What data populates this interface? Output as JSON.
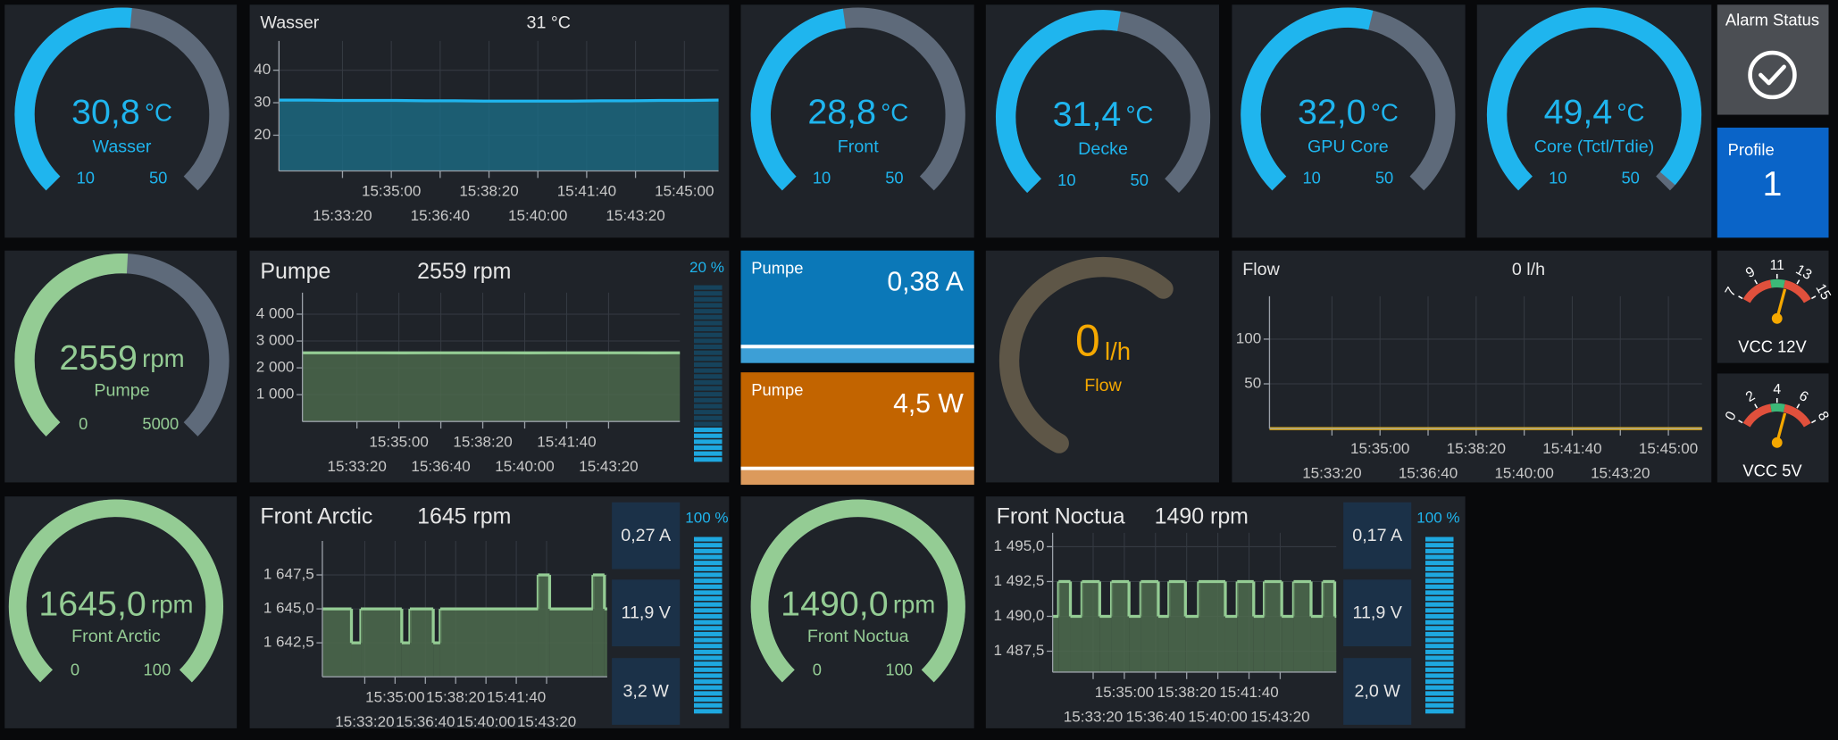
{
  "gauges": [
    {
      "label": "Wasser",
      "value": 30.8,
      "value_label": "30,8",
      "unit": "°C",
      "min": 10,
      "max": 50,
      "color": "#1fb5ee"
    },
    {
      "label": "Front",
      "value": 28.8,
      "value_label": "28,8",
      "unit": "°C",
      "min": 10,
      "max": 50,
      "color": "#1fb5ee"
    },
    {
      "label": "Decke",
      "value": 31.4,
      "value_label": "31,4",
      "unit": "°C",
      "min": 10,
      "max": 50,
      "color": "#1fb5ee"
    },
    {
      "label": "GPU Core",
      "value": 32.0,
      "value_label": "32,0",
      "unit": "°C",
      "min": 10,
      "max": 50,
      "color": "#1fb5ee"
    },
    {
      "label": "Core (Tctl/Tdie)",
      "value": 49.4,
      "value_label": "49,4",
      "unit": "°C",
      "min": 10,
      "max": 50,
      "color": "#1fb5ee"
    },
    {
      "label": "Pumpe",
      "value": 2559,
      "unit": "rpm",
      "min": 0,
      "max": 5000,
      "color": "#94cc94"
    },
    {
      "label": "Front Arctic",
      "value": 1645.0,
      "value_label": "1645,0",
      "unit": "rpm",
      "min": 0,
      "max": 100,
      "color": "#94cc94"
    },
    {
      "label": "Front Noctua",
      "value": 1490.0,
      "value_label": "1490,0",
      "unit": "rpm",
      "min": 0,
      "max": 100,
      "color": "#94cc94"
    }
  ],
  "flow_gauge": {
    "label": "Flow",
    "value": 0,
    "unit": "l/h",
    "color": "#f5a800"
  },
  "charts": [
    {
      "title": "Wasser",
      "current": "31 °C",
      "color": "#1fb5ee",
      "area": "#1b6c84",
      "xlim": [
        "15:31:10",
        "15:46:10"
      ],
      "xticks": [
        "15:33:20",
        "15:35:00",
        "15:36:40",
        "15:38:20",
        "15:40:00",
        "15:41:40",
        "15:43:20",
        "15:45:00"
      ],
      "ylim": [
        9,
        49
      ],
      "yticks": [
        20,
        30,
        40
      ],
      "x": [
        "15:31:10",
        "15:32:10",
        "15:33:10",
        "15:34:10",
        "15:35:10",
        "15:36:10",
        "15:37:10",
        "15:38:10",
        "15:39:10",
        "15:40:10",
        "15:41:10",
        "15:42:10",
        "15:43:10",
        "15:44:10",
        "15:45:10",
        "15:46:10"
      ],
      "values": [
        30.8,
        30.8,
        30.7,
        30.7,
        30.7,
        30.6,
        30.6,
        30.5,
        30.5,
        30.5,
        30.5,
        30.6,
        30.6,
        30.7,
        30.7,
        30.8
      ]
    },
    {
      "title": "Pumpe",
      "current": "2559 rpm",
      "color": "#94cc94",
      "area": "#4d6b4d",
      "xlim": [
        "15:31:10",
        "15:46:10"
      ],
      "xticks": [
        "15:33:20",
        "15:35:00",
        "15:36:40",
        "15:38:20",
        "15:40:00",
        "15:41:40",
        "15:43:20"
      ],
      "ylim": [
        0,
        4800
      ],
      "yticks": [
        {
          "value": 1000,
          "label": "1 000"
        },
        {
          "value": 2000,
          "label": "2 000"
        },
        {
          "value": 3000,
          "label": "3 000"
        },
        {
          "value": 4000,
          "label": "4 000"
        }
      ],
      "x": [
        "15:31:10",
        "15:32:10",
        "15:33:10",
        "15:34:10",
        "15:35:10",
        "15:36:10",
        "15:37:10",
        "15:38:10",
        "15:39:10",
        "15:40:10",
        "15:41:10",
        "15:42:10",
        "15:43:10",
        "15:44:10",
        "15:45:10",
        "15:46:10"
      ],
      "values": [
        2560,
        2559,
        2559,
        2560,
        2558,
        2559,
        2559,
        2560,
        2559,
        2558,
        2559,
        2560,
        2559,
        2559,
        2558,
        2559
      ],
      "duty": 20,
      "duty_label": "20 %"
    },
    {
      "title": "Flow",
      "current": "0 l/h",
      "color": "#f5b800",
      "area": "#f5b800",
      "xlim": [
        "15:31:10",
        "15:46:10"
      ],
      "xticks": [
        "15:33:20",
        "15:35:00",
        "15:36:40",
        "15:38:20",
        "15:40:00",
        "15:41:40",
        "15:43:20",
        "15:45:00"
      ],
      "ylim": [
        0,
        148
      ],
      "yticks": [
        50,
        100
      ],
      "x": [
        "15:31:10",
        "15:32:10",
        "15:33:10",
        "15:34:10",
        "15:35:10",
        "15:36:10",
        "15:37:10",
        "15:38:10",
        "15:39:10",
        "15:40:10",
        "15:41:10",
        "15:42:10",
        "15:43:10",
        "15:44:10",
        "15:45:10",
        "15:46:10"
      ],
      "values": [
        0,
        0,
        0,
        0,
        0,
        0,
        0,
        0,
        0,
        0,
        0,
        0,
        0,
        0,
        0,
        0
      ]
    },
    {
      "title": "Front Arctic",
      "current": "1645 rpm",
      "color": "#94cc94",
      "area": "#4d6b4d",
      "step": true,
      "xlim": [
        "15:31:00",
        "15:46:40"
      ],
      "xticks": [
        "15:33:20",
        "15:35:00",
        "15:36:40",
        "15:38:20",
        "15:40:00",
        "15:41:40",
        "15:43:20"
      ],
      "ylim": [
        1640,
        1650
      ],
      "yticks": [
        {
          "value": 1642.5,
          "label": "1 642,5"
        },
        {
          "value": 1645,
          "label": "1 645,0"
        },
        {
          "value": 1647.5,
          "label": "1 647,5"
        }
      ],
      "x": [
        "15:31:00",
        "15:32:36",
        "15:33:07",
        "15:35:22",
        "15:35:49",
        "15:37:06",
        "15:37:29",
        "15:42:52",
        "15:43:30",
        "15:45:53",
        "15:46:31"
      ],
      "values": [
        1645,
        1642.5,
        1645,
        1642.5,
        1645,
        1642.5,
        1645,
        1647.5,
        1645,
        1647.5,
        1645
      ],
      "readings": [
        "0,27 A",
        "11,9 V",
        "3,2 W"
      ],
      "duty": 100,
      "duty_label": "100 %"
    },
    {
      "title": "Front Noctua",
      "current": "1490 rpm",
      "color": "#94cc94",
      "area": "#4d6b4d",
      "step": true,
      "xlim": [
        "15:31:10",
        "15:46:20"
      ],
      "xticks": [
        "15:33:20",
        "15:35:00",
        "15:36:40",
        "15:38:20",
        "15:40:00",
        "15:41:40",
        "15:43:20"
      ],
      "ylim": [
        1486,
        1496
      ],
      "yticks": [
        {
          "value": 1487.5,
          "label": "1 487,5"
        },
        {
          "value": 1490,
          "label": "1 490,0"
        },
        {
          "value": 1492.5,
          "label": "1 492,5"
        },
        {
          "value": 1495,
          "label": "1 495,0"
        }
      ],
      "x": [
        "15:31:10",
        "15:31:29",
        "15:32:07",
        "15:32:44",
        "15:33:41",
        "15:34:19",
        "15:35:15",
        "15:35:53",
        "15:36:49",
        "15:37:23",
        "15:38:16",
        "15:38:58",
        "15:40:24",
        "15:41:02",
        "15:41:55",
        "15:42:29",
        "15:43:25",
        "15:44:03",
        "15:44:59",
        "15:45:37",
        "15:46:15"
      ],
      "values": [
        1490,
        1492.5,
        1490,
        1492.5,
        1490,
        1492.5,
        1490,
        1492.5,
        1490,
        1492.5,
        1490,
        1492.5,
        1490,
        1492.5,
        1490,
        1492.5,
        1490,
        1492.5,
        1490,
        1492.5,
        1490
      ],
      "readings": [
        "0,17 A",
        "11,9 V",
        "2,0 W"
      ],
      "duty": 100,
      "duty_label": "100 %"
    }
  ],
  "pump_tiles": [
    {
      "label": "Pumpe",
      "reading": "0,38 A",
      "color": "#0b78b8",
      "band": "#3d9fd6"
    },
    {
      "label": "Pumpe",
      "reading": "4,5 W",
      "color": "#c26400",
      "band": "#dc9a5c"
    }
  ],
  "alarm": {
    "title": "Alarm Status"
  },
  "profile": {
    "title": "Profile",
    "value": 1
  },
  "vcc": [
    {
      "label": "VCC 12V",
      "ticks": [
        7,
        9,
        11,
        13,
        15
      ],
      "value": 12
    },
    {
      "label": "VCC 5V",
      "ticks": [
        0,
        2,
        4,
        6,
        8
      ],
      "value": 5
    }
  ]
}
